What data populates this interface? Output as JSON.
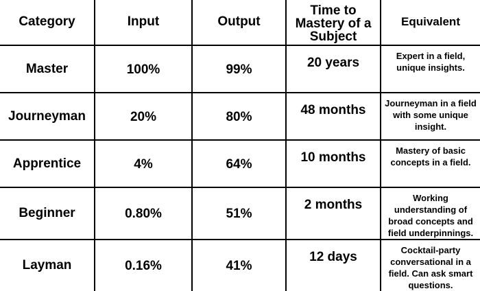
{
  "chart_data": {
    "type": "table",
    "columns": [
      "Category",
      "Input",
      "Output",
      "Time to Mastery of a Subject",
      "Equivalent"
    ],
    "rows": [
      {
        "category": "Master",
        "input": "100%",
        "output": "99%",
        "time": "20 years",
        "equivalent": "Expert in a field, unique insights."
      },
      {
        "category": "Journeyman",
        "input": "20%",
        "output": "80%",
        "time": "48 months",
        "equivalent": "Journeyman in a field with some unique insight."
      },
      {
        "category": "Apprentice",
        "input": "4%",
        "output": "64%",
        "time": "10 months",
        "equivalent": "Mastery of basic concepts in a field."
      },
      {
        "category": "Beginner",
        "input": "0.80%",
        "output": "51%",
        "time": "2 months",
        "equivalent": "Working understanding of broad concepts and field underpinnings."
      },
      {
        "category": "Layman",
        "input": "0.16%",
        "output": "41%",
        "time": "12 days",
        "equivalent": "Cocktail-party conversational in a field. Can ask smart questions."
      }
    ]
  }
}
